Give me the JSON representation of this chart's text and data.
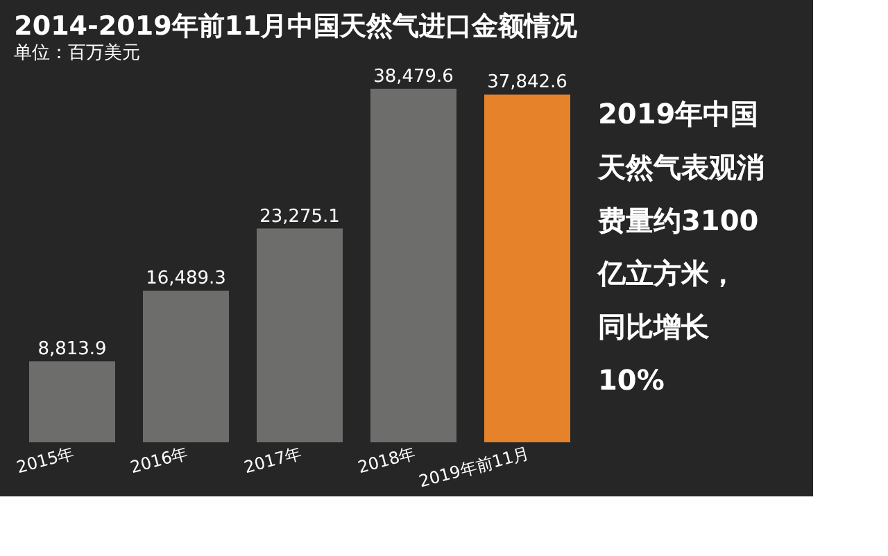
{
  "chart_data": {
    "type": "bar",
    "title": "2014-2019年前11月中国天然气进口金额情况",
    "subtitle": "单位：百万美元",
    "categories": [
      "2015年",
      "2016年",
      "2017年",
      "2018年",
      "2019年前11月"
    ],
    "values": [
      8813.9,
      16489.3,
      23275.1,
      38479.6,
      37842.6
    ],
    "colors": [
      "#6d6e6c",
      "#6d6e6c",
      "#6d6e6c",
      "#6d6e6c",
      "#e5822a"
    ],
    "value_labels": [
      "8,813.9",
      "16,489.3",
      "23,275.1",
      "38,479.6",
      "37,842.6"
    ],
    "grid": false,
    "annotations": [
      "2019年中国",
      "天然气表观消",
      "费量约3100",
      "亿立方米，",
      "同比增长",
      "10%"
    ]
  }
}
